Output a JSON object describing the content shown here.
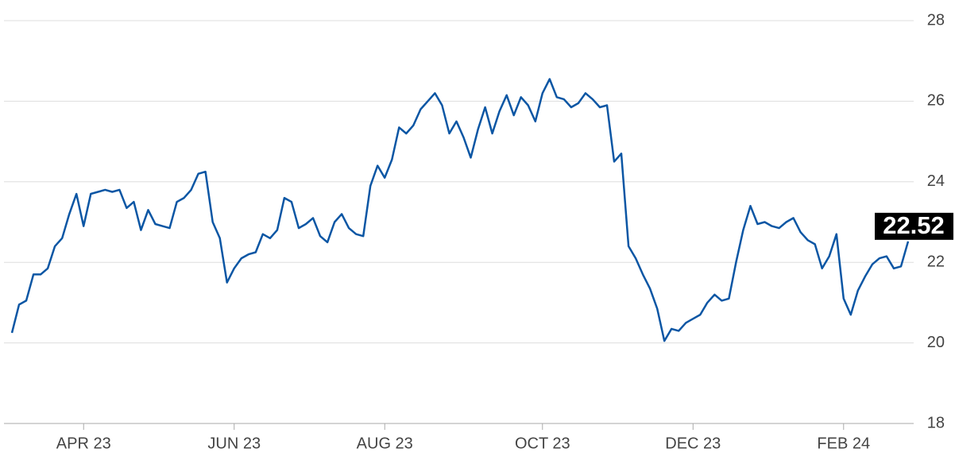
{
  "chart_data": {
    "type": "line",
    "categories": [
      null,
      null,
      null,
      null,
      null,
      null,
      null,
      null,
      null,
      null,
      "APR 23",
      null,
      null,
      null,
      null,
      null,
      null,
      null,
      null,
      null,
      null,
      null,
      null,
      null,
      null,
      null,
      null,
      null,
      null,
      null,
      null,
      "JUN 23",
      null,
      null,
      null,
      null,
      null,
      null,
      null,
      null,
      null,
      null,
      null,
      null,
      null,
      null,
      null,
      null,
      null,
      null,
      null,
      null,
      "AUG 23",
      null,
      null,
      null,
      null,
      null,
      null,
      null,
      null,
      null,
      null,
      null,
      null,
      null,
      null,
      null,
      null,
      null,
      null,
      null,
      null,
      null,
      "OCT 23",
      null,
      null,
      null,
      null,
      null,
      null,
      null,
      null,
      null,
      null,
      null,
      null,
      null,
      null,
      null,
      null,
      null,
      null,
      null,
      null,
      "DEC 23",
      null,
      null,
      null,
      null,
      null,
      null,
      null,
      null,
      null,
      null,
      null,
      null,
      null,
      null,
      null,
      null,
      null,
      null,
      null,
      null,
      "FEB 24",
      null,
      null,
      null,
      null,
      null,
      null,
      null,
      null,
      null
    ],
    "values": [
      20.25,
      20.95,
      21.05,
      21.7,
      21.7,
      21.85,
      22.4,
      22.6,
      23.2,
      23.7,
      22.9,
      23.7,
      23.75,
      23.8,
      23.75,
      23.8,
      23.35,
      23.5,
      22.8,
      23.3,
      22.95,
      22.9,
      22.85,
      23.5,
      23.6,
      23.8,
      24.2,
      24.25,
      23.0,
      22.6,
      21.5,
      21.85,
      22.1,
      22.2,
      22.25,
      22.7,
      22.6,
      22.8,
      23.6,
      23.5,
      22.85,
      22.95,
      23.1,
      22.65,
      22.5,
      23.0,
      23.2,
      22.85,
      22.7,
      22.65,
      23.9,
      24.4,
      24.1,
      24.55,
      25.35,
      25.2,
      25.4,
      25.8,
      26.0,
      26.2,
      25.9,
      25.2,
      25.5,
      25.1,
      24.6,
      25.3,
      25.85,
      25.2,
      25.75,
      26.15,
      25.65,
      26.1,
      25.9,
      25.5,
      26.2,
      26.55,
      26.1,
      26.05,
      25.85,
      25.95,
      26.2,
      26.05,
      25.85,
      25.9,
      24.5,
      24.7,
      22.4,
      22.1,
      21.7,
      21.35,
      20.85,
      20.05,
      20.35,
      20.3,
      20.5,
      20.6,
      20.7,
      21.0,
      21.2,
      21.05,
      21.1,
      22.0,
      22.8,
      23.4,
      22.95,
      23.0,
      22.9,
      22.85,
      23.0,
      23.1,
      22.75,
      22.55,
      22.45,
      21.85,
      22.15,
      22.7,
      21.1,
      20.7,
      21.3,
      21.65,
      21.95,
      22.1,
      22.15,
      21.85,
      21.9,
      22.52
    ],
    "color": "#0b56a4",
    "ylim": [
      18,
      28
    ],
    "yticks": [
      18,
      20,
      22,
      24,
      26,
      28
    ],
    "grid": true
  }
}
